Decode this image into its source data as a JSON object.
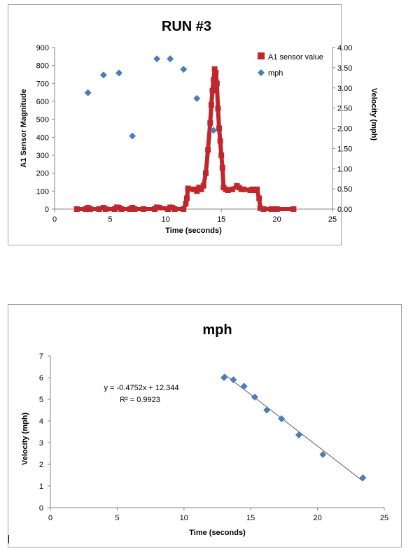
{
  "chart_data": [
    {
      "type": "scatter",
      "title": "RUN #3",
      "xlabel": "Time (seconds)",
      "ylabel": "A1 Sensor Magnitude",
      "y2label": "Velocity (mph)",
      "xlim": [
        0,
        25
      ],
      "ylim": [
        0,
        900
      ],
      "y2lim": [
        0,
        4
      ],
      "x_ticks": [
        "0",
        "5",
        "10",
        "15",
        "20",
        "25"
      ],
      "y_ticks": [
        "0",
        "100",
        "200",
        "300",
        "400",
        "500",
        "600",
        "700",
        "800",
        "900"
      ],
      "y2_ticks": [
        "0.00",
        "0.50",
        "1.00",
        "1.50",
        "2.00",
        "2.50",
        "3.00",
        "3.50",
        "4.00"
      ],
      "legend_position": "top-right",
      "series": [
        {
          "name": "A1 sensor value",
          "color": "#c0272d",
          "axis": "left",
          "x": [
            2.0,
            2.8,
            3.0,
            3.2,
            4.0,
            4.4,
            4.6,
            5.4,
            5.6,
            5.8,
            6.0,
            6.8,
            7.0,
            7.2,
            8.0,
            9.0,
            9.2,
            9.4,
            10.2,
            10.4,
            10.6,
            10.8,
            11.6,
            11.8,
            11.9,
            12.0,
            12.5,
            12.8,
            13.0,
            13.2,
            13.4,
            13.6,
            13.8,
            14.0,
            14.1,
            14.2,
            14.3,
            14.4,
            14.5,
            14.6,
            14.7,
            14.8,
            14.9,
            15.0,
            15.1,
            15.2,
            15.4,
            15.6,
            16.0,
            16.4,
            16.6,
            16.8,
            17.0,
            17.6,
            17.8,
            18.0,
            18.2,
            18.4,
            18.5,
            18.8,
            19.5,
            20.0,
            21.5
          ],
          "values": [
            0,
            0,
            8,
            0,
            0,
            8,
            0,
            0,
            10,
            8,
            0,
            0,
            8,
            0,
            0,
            0,
            10,
            8,
            0,
            10,
            8,
            0,
            0,
            30,
            60,
            115,
            110,
            100,
            120,
            110,
            130,
            200,
            330,
            480,
            580,
            660,
            720,
            780,
            760,
            700,
            560,
            450,
            380,
            300,
            230,
            120,
            110,
            105,
            110,
            130,
            120,
            110,
            110,
            105,
            110,
            105,
            110,
            60,
            5,
            0,
            0,
            0,
            0
          ]
        },
        {
          "name": "mph",
          "color": "#4a7ebb",
          "axis": "right",
          "x": [
            3.0,
            4.4,
            5.8,
            7.0,
            9.2,
            10.4,
            11.6,
            12.8,
            14.3
          ],
          "values": [
            2.88,
            3.32,
            3.37,
            1.81,
            3.72,
            3.72,
            3.46,
            2.74,
            1.95
          ]
        }
      ]
    },
    {
      "type": "scatter",
      "title": "mph",
      "xlabel": "Time (seconds)",
      "ylabel": "Velocity (mph)",
      "xlim": [
        0,
        25
      ],
      "ylim": [
        0,
        7
      ],
      "x_ticks": [
        "0",
        "5",
        "10",
        "15",
        "20",
        "25"
      ],
      "y_ticks": [
        "0",
        "1",
        "2",
        "3",
        "4",
        "5",
        "6",
        "7"
      ],
      "legend": "none",
      "trendline": {
        "slope": -0.4752,
        "intercept": 12.344,
        "x_range": [
          13.0,
          23.4
        ],
        "equation_label": "y = -0.4752x + 12.344",
        "r2_label": "R² = 0.9923",
        "color": "#595959"
      },
      "series": [
        {
          "color": "#4a7ebb",
          "x": [
            13.0,
            13.7,
            14.5,
            15.3,
            16.2,
            17.3,
            18.6,
            20.4,
            23.4
          ],
          "values": [
            6.0,
            5.9,
            5.6,
            5.1,
            4.5,
            4.1,
            3.35,
            2.45,
            1.38
          ]
        }
      ]
    }
  ]
}
